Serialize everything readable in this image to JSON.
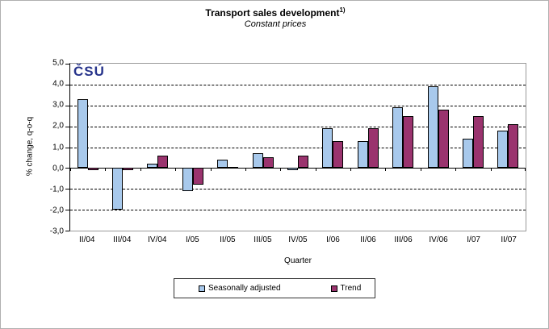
{
  "header": {
    "title": "Transport sales development",
    "title_note": "1)",
    "subtitle": "Constant prices"
  },
  "logo": {
    "text": "ČSÚ",
    "color": "#27348B"
  },
  "chart_data": {
    "type": "bar",
    "title": "Transport sales development 1)",
    "subtitle": "Constant prices",
    "categories": [
      "II/04",
      "III/04",
      "IV/04",
      "I/05",
      "II/05",
      "III/05",
      "IV/05",
      "I/06",
      "II/06",
      "III/06",
      "IV/06",
      "I/07",
      "II/07"
    ],
    "series": [
      {
        "name": "Seasonally adjusted",
        "color": "#A8C9EC",
        "values": [
          3.3,
          -2.0,
          0.2,
          -1.1,
          0.4,
          0.7,
          -0.1,
          1.9,
          1.3,
          2.9,
          3.9,
          1.4,
          1.8
        ]
      },
      {
        "name": "Trend",
        "color": "#9A336E",
        "values": [
          -0.1,
          -0.1,
          0.6,
          -0.8,
          0.05,
          0.5,
          0.6,
          1.3,
          1.9,
          2.5,
          2.8,
          2.5,
          2.1
        ]
      }
    ],
    "xlabel": "Quarter",
    "ylabel": "% change, q-o-q",
    "ylim": [
      -3,
      5
    ],
    "ytick_step": 1,
    "ytick_labels": [
      "5,0",
      "4,0",
      "3,0",
      "2,0",
      "1,0",
      "0,0",
      "-1,0",
      "-2,0",
      "-3,0"
    ],
    "grid": "horizontal-dashed",
    "legend_position": "bottom"
  },
  "legend": {
    "items": [
      {
        "label": "Seasonally adjusted"
      },
      {
        "label": "Trend"
      }
    ]
  }
}
